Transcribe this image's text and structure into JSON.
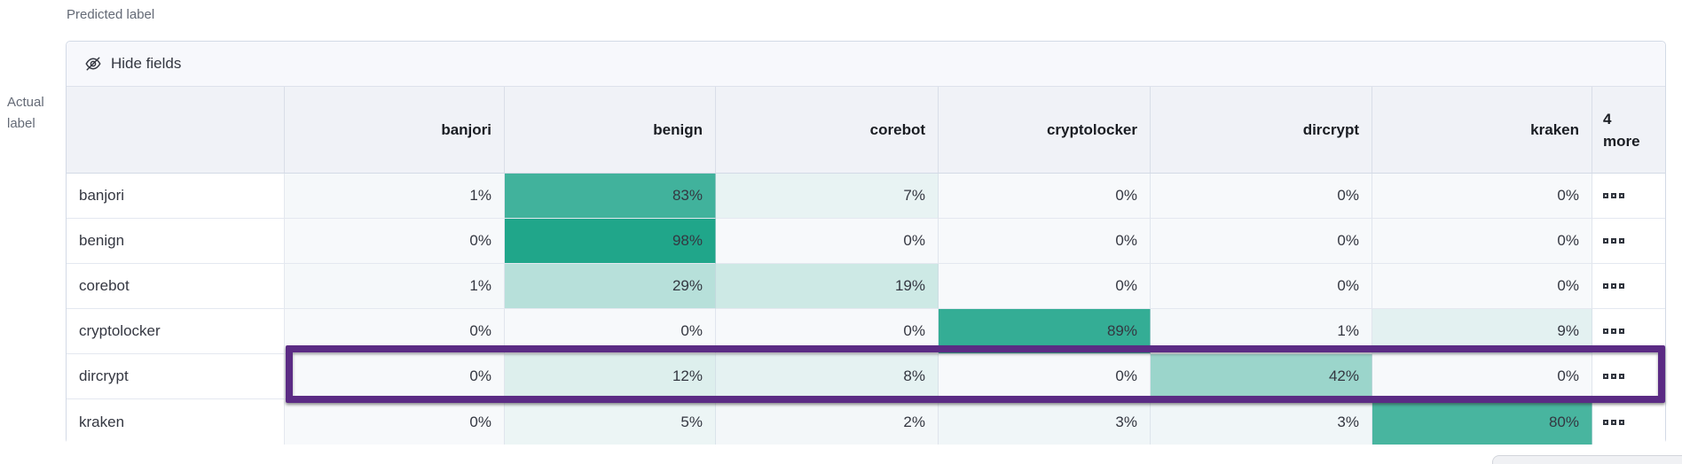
{
  "axis": {
    "predicted_label": "Predicted label",
    "actual_label_line1": "Actual",
    "actual_label_line2": "label"
  },
  "toolbar": {
    "hide_fields_label": "Hide fields",
    "hide_fields_icon": "eye-closed-icon"
  },
  "grid": {
    "columns": [
      "banjori",
      "benign",
      "corebot",
      "cryptolocker",
      "dircrypt",
      "kraken"
    ],
    "more_column": {
      "count": "4",
      "word": "more",
      "cell_icon": "boxes-horizontal-icon"
    },
    "value_suffix": "%",
    "rows": [
      {
        "label": "banjori",
        "values": [
          1,
          83,
          7,
          0,
          0,
          0
        ]
      },
      {
        "label": "benign",
        "values": [
          0,
          98,
          0,
          0,
          0,
          0
        ]
      },
      {
        "label": "corebot",
        "values": [
          1,
          29,
          19,
          0,
          0,
          0
        ]
      },
      {
        "label": "cryptolocker",
        "values": [
          0,
          0,
          0,
          89,
          1,
          9
        ]
      },
      {
        "label": "dircrypt",
        "values": [
          0,
          12,
          8,
          0,
          42,
          0
        ],
        "highlighted": true
      },
      {
        "label": "kraken",
        "values": [
          0,
          5,
          2,
          3,
          3,
          80
        ]
      }
    ],
    "highlighted_row": "dircrypt"
  },
  "colors": {
    "heat_max": "#1ca488",
    "heat_zero": "#f7f9fb",
    "highlight_border": "#5b2b84",
    "header_bg": "#f0f2f7",
    "toolbar_bg": "#f7f8fc"
  }
}
